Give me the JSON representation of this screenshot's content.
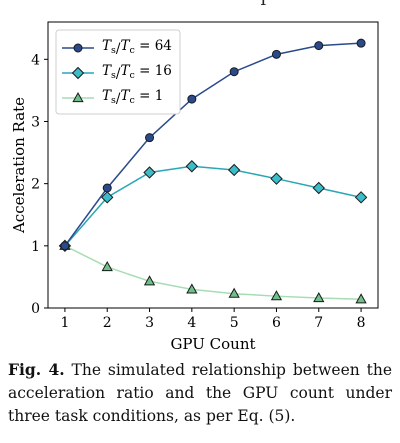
{
  "chart_data": {
    "type": "line",
    "title": "",
    "xlabel": "GPU Count",
    "ylabel": "Acceleration Rate",
    "x": [
      1,
      2,
      3,
      4,
      5,
      6,
      7,
      8
    ],
    "xlim": [
      0.6,
      8.4
    ],
    "ylim": [
      0,
      4.6
    ],
    "yticks": [
      0,
      1,
      2,
      3,
      4
    ],
    "grid": false,
    "legend_position": "top-left",
    "series": [
      {
        "name": "Ts/Tc = 64",
        "name_main": "T",
        "sub1": "s",
        "slash": "/",
        "name_main2": "T",
        "sub2": "c",
        "eq": " = 64",
        "marker": "circle",
        "color": "#2b4a8c",
        "fill": "#2b4a8c",
        "values": [
          1.0,
          1.93,
          2.74,
          3.36,
          3.8,
          4.08,
          4.22,
          4.26
        ]
      },
      {
        "name": "Ts/Tc = 16",
        "name_main": "T",
        "sub1": "s",
        "slash": "/",
        "name_main2": "T",
        "sub2": "c",
        "eq": " = 16",
        "marker": "diamond",
        "color": "#2aa6b5",
        "fill": "#3bbcc9",
        "values": [
          1.0,
          1.78,
          2.18,
          2.28,
          2.22,
          2.08,
          1.93,
          1.78
        ]
      },
      {
        "name": "Ts/Tc = 1",
        "name_main": "T",
        "sub1": "s",
        "slash": "/",
        "name_main2": "T",
        "sub2": "c",
        "eq": " = 1",
        "marker": "triangle",
        "color": "#a8dcb5",
        "fill": "#6fc08a",
        "values": [
          1.0,
          0.66,
          0.43,
          0.3,
          0.23,
          0.19,
          0.16,
          0.14
        ]
      }
    ]
  },
  "top_fragment": "T",
  "caption": {
    "label": "Fig. 4.",
    "text": " The simulated relationship between the acceleration ratio and the GPU count under three task conditions, as per Eq. (5)."
  }
}
